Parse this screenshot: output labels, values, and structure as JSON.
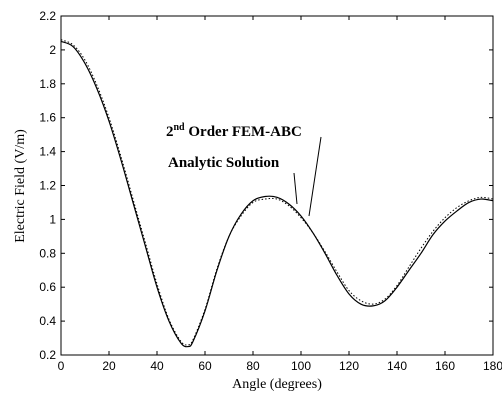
{
  "chart_data": {
    "type": "line",
    "title": "",
    "xlabel": "Angle (degrees)",
    "ylabel": "Electric Field (V/m)",
    "xlim": [
      0,
      180
    ],
    "ylim": [
      0.2,
      2.2
    ],
    "xticks": [
      "0",
      "20",
      "40",
      "60",
      "80",
      "100",
      "120",
      "140",
      "160",
      "180"
    ],
    "yticks": [
      "0.2",
      "0.4",
      "0.6",
      "0.8",
      "1",
      "1.2",
      "1.4",
      "1.6",
      "1.8",
      "2",
      "2.2"
    ],
    "grid": false,
    "series": [
      {
        "name": "2nd Order FEM-ABC",
        "style": "solid",
        "color": "#000000",
        "x": [
          0,
          5,
          10,
          15,
          20,
          25,
          30,
          35,
          40,
          45,
          50,
          53,
          55,
          60,
          65,
          70,
          75,
          80,
          85,
          90,
          95,
          100,
          105,
          110,
          115,
          120,
          125,
          130,
          135,
          140,
          145,
          150,
          155,
          160,
          165,
          170,
          175,
          180
        ],
        "y": [
          2.05,
          2.02,
          1.92,
          1.77,
          1.58,
          1.35,
          1.1,
          0.85,
          0.6,
          0.4,
          0.27,
          0.25,
          0.28,
          0.46,
          0.7,
          0.9,
          1.03,
          1.11,
          1.135,
          1.13,
          1.09,
          1.02,
          0.92,
          0.8,
          0.67,
          0.56,
          0.5,
          0.49,
          0.52,
          0.6,
          0.7,
          0.8,
          0.91,
          0.99,
          1.05,
          1.1,
          1.12,
          1.11
        ]
      },
      {
        "name": "Analytic Solution",
        "style": "dotted",
        "color": "#000000",
        "x": [
          0,
          5,
          10,
          15,
          20,
          25,
          30,
          35,
          40,
          45,
          50,
          53,
          55,
          60,
          65,
          70,
          75,
          80,
          85,
          90,
          95,
          100,
          105,
          110,
          115,
          120,
          125,
          130,
          135,
          140,
          145,
          150,
          155,
          160,
          165,
          170,
          175,
          180
        ],
        "y": [
          2.06,
          2.03,
          1.94,
          1.79,
          1.6,
          1.37,
          1.12,
          0.87,
          0.62,
          0.41,
          0.28,
          0.26,
          0.29,
          0.47,
          0.71,
          0.9,
          1.02,
          1.1,
          1.12,
          1.12,
          1.08,
          1.01,
          0.92,
          0.81,
          0.69,
          0.58,
          0.52,
          0.5,
          0.53,
          0.61,
          0.72,
          0.83,
          0.93,
          1.01,
          1.07,
          1.11,
          1.13,
          1.12
        ]
      }
    ],
    "annotations": [
      {
        "main": "2",
        "sup": "nd",
        "rest": " Order FEM-ABC"
      },
      {
        "text": "Analytic Solution"
      }
    ]
  }
}
